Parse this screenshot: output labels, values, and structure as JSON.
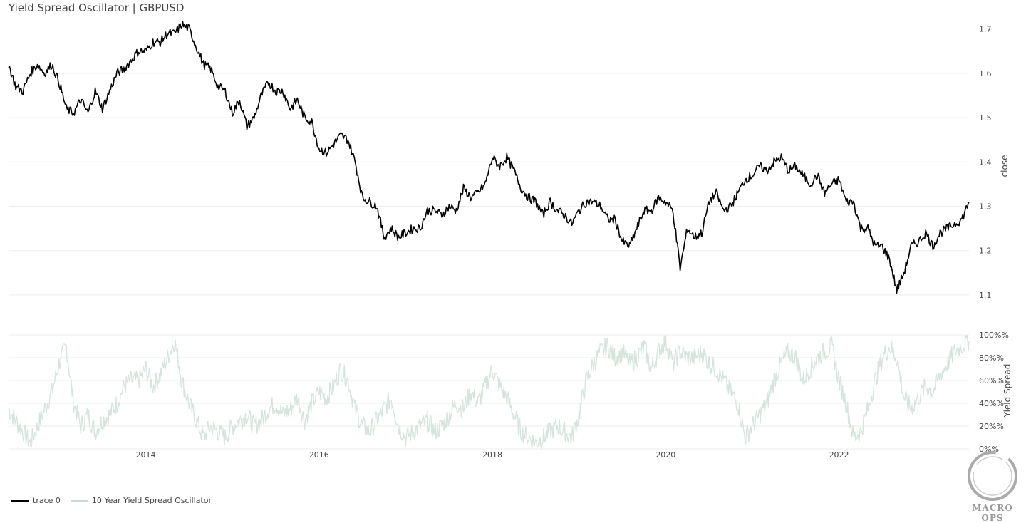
{
  "title": "Yield Spread Oscillator | GBPUSD",
  "colors": {
    "price": "#000000",
    "spread": "#d5e5dc",
    "grid": "#eeeeee"
  },
  "legend": [
    {
      "label": "trace 0",
      "color": "#000000"
    },
    {
      "label": "10 Year Yield Spread Oscillator",
      "color": "#c7ddd2"
    }
  ],
  "logo": {
    "text": "MACRO OPS"
  },
  "chart_data": [
    {
      "type": "line",
      "title": "",
      "ylabel": "close",
      "ylim": [
        1.05,
        1.73
      ],
      "yticks": [
        1.1,
        1.2,
        1.3,
        1.4,
        1.5,
        1.6,
        1.7
      ],
      "ytick_labels": [
        "1.1",
        "1.2",
        "1.3",
        "1.4",
        "1.5",
        "1.6",
        "1.7"
      ],
      "xlim": [
        "2012-06",
        "2023-07"
      ],
      "series": [
        {
          "x": [
            "2012-06",
            "2012-07",
            "2012-08",
            "2012-09",
            "2012-10",
            "2012-11",
            "2012-12",
            "2013-01",
            "2013-02",
            "2013-03",
            "2013-04",
            "2013-05",
            "2013-06",
            "2013-07",
            "2013-08",
            "2013-09",
            "2013-10",
            "2013-11",
            "2013-12",
            "2014-01",
            "2014-02",
            "2014-03",
            "2014-04",
            "2014-05",
            "2014-06",
            "2014-07",
            "2014-08",
            "2014-09",
            "2014-10",
            "2014-11",
            "2014-12",
            "2015-01",
            "2015-02",
            "2015-03",
            "2015-04",
            "2015-05",
            "2015-06",
            "2015-07",
            "2015-08",
            "2015-09",
            "2015-10",
            "2015-11",
            "2015-12",
            "2016-01",
            "2016-02",
            "2016-03",
            "2016-04",
            "2016-05",
            "2016-06",
            "2016-07",
            "2016-08",
            "2016-09",
            "2016-10",
            "2016-11",
            "2016-12",
            "2017-01",
            "2017-02",
            "2017-03",
            "2017-04",
            "2017-05",
            "2017-06",
            "2017-07",
            "2017-08",
            "2017-09",
            "2017-10",
            "2017-11",
            "2017-12",
            "2018-01",
            "2018-02",
            "2018-03",
            "2018-04",
            "2018-05",
            "2018-06",
            "2018-07",
            "2018-08",
            "2018-09",
            "2018-10",
            "2018-11",
            "2018-12",
            "2019-01",
            "2019-02",
            "2019-03",
            "2019-04",
            "2019-05",
            "2019-06",
            "2019-07",
            "2019-08",
            "2019-09",
            "2019-10",
            "2019-11",
            "2019-12",
            "2020-01",
            "2020-02",
            "2020-03",
            "2020-04",
            "2020-05",
            "2020-06",
            "2020-07",
            "2020-08",
            "2020-09",
            "2020-10",
            "2020-11",
            "2020-12",
            "2021-01",
            "2021-02",
            "2021-03",
            "2021-04",
            "2021-05",
            "2021-06",
            "2021-07",
            "2021-08",
            "2021-09",
            "2021-10",
            "2021-11",
            "2021-12",
            "2022-01",
            "2022-02",
            "2022-03",
            "2022-04",
            "2022-05",
            "2022-06",
            "2022-07",
            "2022-08",
            "2022-09",
            "2022-10",
            "2022-11",
            "2022-12",
            "2023-01",
            "2023-02",
            "2023-03",
            "2023-04",
            "2023-05",
            "2023-06",
            "2023-07"
          ],
          "y": [
            1.62,
            1.57,
            1.56,
            1.6,
            1.62,
            1.6,
            1.62,
            1.58,
            1.52,
            1.51,
            1.54,
            1.51,
            1.56,
            1.52,
            1.56,
            1.6,
            1.61,
            1.63,
            1.65,
            1.65,
            1.67,
            1.67,
            1.69,
            1.69,
            1.71,
            1.7,
            1.66,
            1.62,
            1.61,
            1.57,
            1.56,
            1.51,
            1.54,
            1.48,
            1.5,
            1.55,
            1.58,
            1.56,
            1.56,
            1.52,
            1.54,
            1.5,
            1.49,
            1.43,
            1.42,
            1.44,
            1.46,
            1.45,
            1.4,
            1.32,
            1.31,
            1.3,
            1.23,
            1.25,
            1.23,
            1.24,
            1.25,
            1.25,
            1.29,
            1.29,
            1.28,
            1.3,
            1.29,
            1.34,
            1.32,
            1.33,
            1.35,
            1.41,
            1.39,
            1.41,
            1.38,
            1.34,
            1.32,
            1.31,
            1.28,
            1.31,
            1.29,
            1.28,
            1.26,
            1.29,
            1.31,
            1.31,
            1.3,
            1.27,
            1.27,
            1.22,
            1.21,
            1.25,
            1.29,
            1.29,
            1.32,
            1.31,
            1.29,
            1.16,
            1.25,
            1.23,
            1.24,
            1.31,
            1.33,
            1.29,
            1.3,
            1.33,
            1.36,
            1.37,
            1.39,
            1.38,
            1.4,
            1.41,
            1.38,
            1.39,
            1.37,
            1.35,
            1.37,
            1.33,
            1.35,
            1.36,
            1.31,
            1.31,
            1.25,
            1.25,
            1.21,
            1.21,
            1.18,
            1.11,
            1.15,
            1.21,
            1.22,
            1.24,
            1.21,
            1.24,
            1.25,
            1.26,
            1.27,
            1.31
          ]
        }
      ]
    },
    {
      "type": "area",
      "title": "",
      "ylabel": "Yield Spread",
      "ylim": [
        0,
        100
      ],
      "yticks": [
        0,
        20,
        40,
        60,
        80,
        100
      ],
      "ytick_labels": [
        "0%%",
        "20%%",
        "40%%",
        "60%%",
        "80%%",
        "100%%"
      ],
      "xticks": [
        "2014",
        "2016",
        "2018",
        "2020",
        "2022"
      ],
      "series": [
        {
          "name": "10 Year Yield Spread Oscillator",
          "x": [
            "2012-06",
            "2012-07",
            "2012-08",
            "2012-09",
            "2012-10",
            "2012-11",
            "2012-12",
            "2013-01",
            "2013-02",
            "2013-03",
            "2013-04",
            "2013-05",
            "2013-06",
            "2013-07",
            "2013-08",
            "2013-09",
            "2013-10",
            "2013-11",
            "2013-12",
            "2014-01",
            "2014-02",
            "2014-03",
            "2014-04",
            "2014-05",
            "2014-06",
            "2014-07",
            "2014-08",
            "2014-09",
            "2014-10",
            "2014-11",
            "2014-12",
            "2015-01",
            "2015-02",
            "2015-03",
            "2015-04",
            "2015-05",
            "2015-06",
            "2015-07",
            "2015-08",
            "2015-09",
            "2015-10",
            "2015-11",
            "2015-12",
            "2016-01",
            "2016-02",
            "2016-03",
            "2016-04",
            "2016-05",
            "2016-06",
            "2016-07",
            "2016-08",
            "2016-09",
            "2016-10",
            "2016-11",
            "2016-12",
            "2017-01",
            "2017-02",
            "2017-03",
            "2017-04",
            "2017-05",
            "2017-06",
            "2017-07",
            "2017-08",
            "2017-09",
            "2017-10",
            "2017-11",
            "2017-12",
            "2018-01",
            "2018-02",
            "2018-03",
            "2018-04",
            "2018-05",
            "2018-06",
            "2018-07",
            "2018-08",
            "2018-09",
            "2018-10",
            "2018-11",
            "2018-12",
            "2019-01",
            "2019-02",
            "2019-03",
            "2019-04",
            "2019-05",
            "2019-06",
            "2019-07",
            "2019-08",
            "2019-09",
            "2019-10",
            "2019-11",
            "2019-12",
            "2020-01",
            "2020-02",
            "2020-03",
            "2020-04",
            "2020-05",
            "2020-06",
            "2020-07",
            "2020-08",
            "2020-09",
            "2020-10",
            "2020-11",
            "2020-12",
            "2021-01",
            "2021-02",
            "2021-03",
            "2021-04",
            "2021-05",
            "2021-06",
            "2021-07",
            "2021-08",
            "2021-09",
            "2021-10",
            "2021-11",
            "2021-12",
            "2022-01",
            "2022-02",
            "2022-03",
            "2022-04",
            "2022-05",
            "2022-06",
            "2022-07",
            "2022-08",
            "2022-09",
            "2022-10",
            "2022-11",
            "2022-12",
            "2023-01",
            "2023-02",
            "2023-03",
            "2023-04",
            "2023-05",
            "2023-06",
            "2023-07"
          ],
          "y": [
            35,
            25,
            15,
            5,
            20,
            35,
            50,
            75,
            90,
            40,
            20,
            30,
            15,
            25,
            30,
            40,
            55,
            60,
            60,
            70,
            55,
            65,
            80,
            95,
            60,
            40,
            25,
            10,
            20,
            15,
            10,
            20,
            25,
            30,
            20,
            25,
            35,
            40,
            30,
            35,
            45,
            25,
            40,
            50,
            45,
            55,
            70,
            60,
            35,
            20,
            15,
            25,
            35,
            45,
            20,
            10,
            15,
            20,
            25,
            15,
            20,
            30,
            40,
            35,
            50,
            40,
            55,
            70,
            55,
            45,
            30,
            15,
            10,
            5,
            10,
            15,
            20,
            15,
            10,
            30,
            60,
            75,
            85,
            90,
            80,
            85,
            75,
            80,
            90,
            70,
            85,
            95,
            75,
            85,
            80,
            80,
            85,
            75,
            70,
            60,
            50,
            40,
            10,
            20,
            30,
            40,
            60,
            75,
            85,
            80,
            60,
            70,
            80,
            85,
            90,
            60,
            40,
            10,
            15,
            35,
            60,
            80,
            90,
            80,
            45,
            35,
            45,
            55,
            50,
            65,
            75,
            85,
            90,
            95
          ]
        }
      ]
    }
  ]
}
